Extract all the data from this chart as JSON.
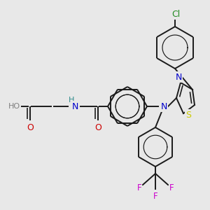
{
  "background_color": "#e8e8e8",
  "bond_color": "#1a1a1a",
  "bond_width": 1.4,
  "bg": "#e8e8e8",
  "colors": {
    "Cl": "#228B22",
    "N": "#0000cc",
    "O": "#cc0000",
    "S": "#cccc00",
    "F": "#cc00cc",
    "H": "#2e8b8b",
    "HO": "#808080",
    "C": "#1a1a1a"
  },
  "fontsize": 8.5
}
